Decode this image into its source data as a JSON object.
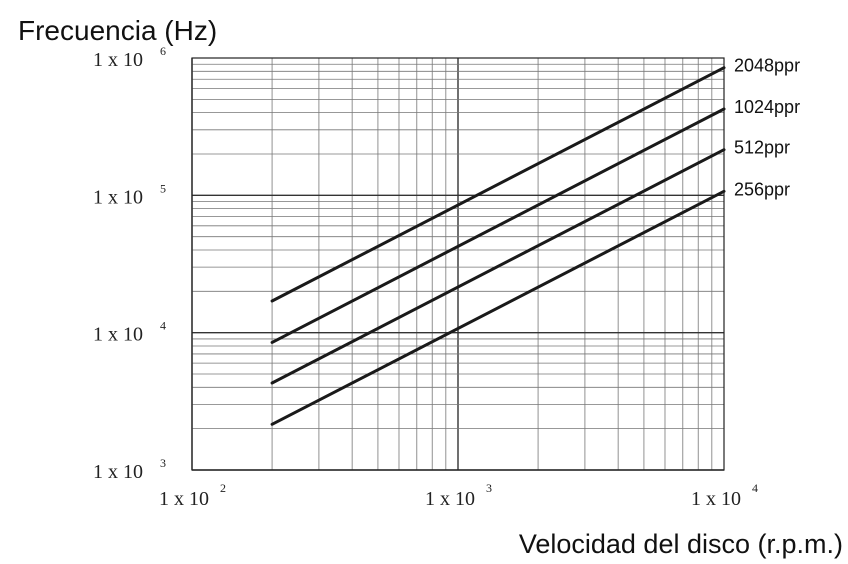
{
  "chart_data": {
    "type": "line",
    "title": "",
    "ylabel": "Frecuencia (Hz)",
    "xlabel": "Velocidad del disco (r.p.m.)",
    "x_scale": "log",
    "y_scale": "log",
    "xlim": [
      100,
      10000
    ],
    "ylim": [
      1000,
      1000000
    ],
    "grid": true,
    "x_ticks": [
      {
        "base": "1 x 10",
        "exp": "2"
      },
      {
        "base": "1 x 10",
        "exp": "3"
      },
      {
        "base": "1 x 10",
        "exp": "4"
      }
    ],
    "y_ticks": [
      {
        "base": "1 x 10",
        "exp": "3"
      },
      {
        "base": "1 x 10",
        "exp": "4"
      },
      {
        "base": "1 x 10",
        "exp": "5"
      },
      {
        "base": "1 x 10",
        "exp": "6"
      }
    ],
    "series": [
      {
        "name": "2048ppr",
        "x": [
          200,
          10000
        ],
        "y": [
          17000,
          850000
        ]
      },
      {
        "name": "1024ppr",
        "x": [
          200,
          10000
        ],
        "y": [
          8500,
          425000
        ]
      },
      {
        "name": "512ppr",
        "x": [
          200,
          10000
        ],
        "y": [
          4300,
          215000
        ]
      },
      {
        "name": "256ppr",
        "x": [
          200,
          10000
        ],
        "y": [
          2150,
          107000
        ]
      }
    ]
  }
}
